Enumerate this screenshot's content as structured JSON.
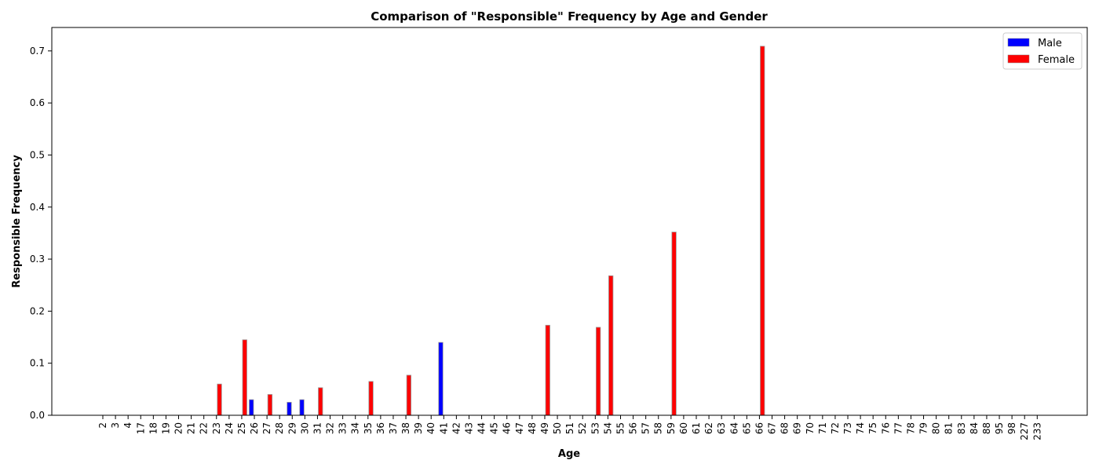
{
  "chart_data": {
    "type": "bar",
    "title": "Comparison of \"Responsible\" Frequency by Age and Gender",
    "xlabel": "Age",
    "ylabel": "Responsible Frequency",
    "ylim": [
      0,
      0.745
    ],
    "yticks": [
      "0.0",
      "0.1",
      "0.2",
      "0.3",
      "0.4",
      "0.5",
      "0.6",
      "0.7"
    ],
    "grid": false,
    "legend_position": "top-right",
    "categories": [
      "2",
      "3",
      "4",
      "17",
      "18",
      "19",
      "20",
      "21",
      "22",
      "23",
      "24",
      "25",
      "26",
      "27",
      "28",
      "29",
      "30",
      "31",
      "32",
      "33",
      "34",
      "35",
      "36",
      "37",
      "38",
      "39",
      "40",
      "41",
      "42",
      "43",
      "44",
      "45",
      "46",
      "47",
      "48",
      "49",
      "50",
      "51",
      "52",
      "53",
      "54",
      "55",
      "56",
      "57",
      "58",
      "59",
      "60",
      "61",
      "62",
      "63",
      "64",
      "65",
      "66",
      "67",
      "68",
      "69",
      "70",
      "71",
      "72",
      "73",
      "74",
      "75",
      "76",
      "77",
      "78",
      "79",
      "80",
      "81",
      "83",
      "84",
      "88",
      "95",
      "98",
      "227",
      "233"
    ],
    "series": [
      {
        "name": "Male",
        "color": "#0000ff",
        "values": [
          0,
          0,
          0,
          0,
          0,
          0,
          0,
          0,
          0,
          0,
          0,
          0,
          0.03,
          0,
          0,
          0.025,
          0.03,
          0,
          0,
          0,
          0,
          0,
          0,
          0,
          0,
          0,
          0,
          0.14,
          0,
          0,
          0,
          0,
          0,
          0,
          0,
          0,
          0,
          0,
          0,
          0,
          0,
          0,
          0,
          0,
          0,
          0,
          0,
          0,
          0,
          0,
          0,
          0,
          0,
          0,
          0,
          0,
          0,
          0,
          0,
          0,
          0,
          0,
          0,
          0,
          0,
          0,
          0,
          0,
          0,
          0,
          0,
          0,
          0,
          0,
          0
        ]
      },
      {
        "name": "Female",
        "color": "#ff0000",
        "values": [
          0,
          0,
          0,
          0,
          0,
          0,
          0,
          0,
          0,
          0.06,
          0,
          0.145,
          0,
          0.04,
          0,
          0,
          0,
          0.053,
          0,
          0,
          0,
          0.065,
          0,
          0,
          0.077,
          0,
          0,
          0,
          0,
          0,
          0,
          0,
          0,
          0,
          0,
          0.173,
          0,
          0,
          0,
          0.169,
          0.268,
          0,
          0,
          0,
          0,
          0.352,
          0,
          0,
          0,
          0,
          0,
          0,
          0.709,
          0,
          0,
          0,
          0,
          0,
          0,
          0,
          0,
          0,
          0,
          0,
          0,
          0,
          0,
          0,
          0,
          0,
          0,
          0,
          0,
          0,
          0
        ]
      }
    ]
  }
}
